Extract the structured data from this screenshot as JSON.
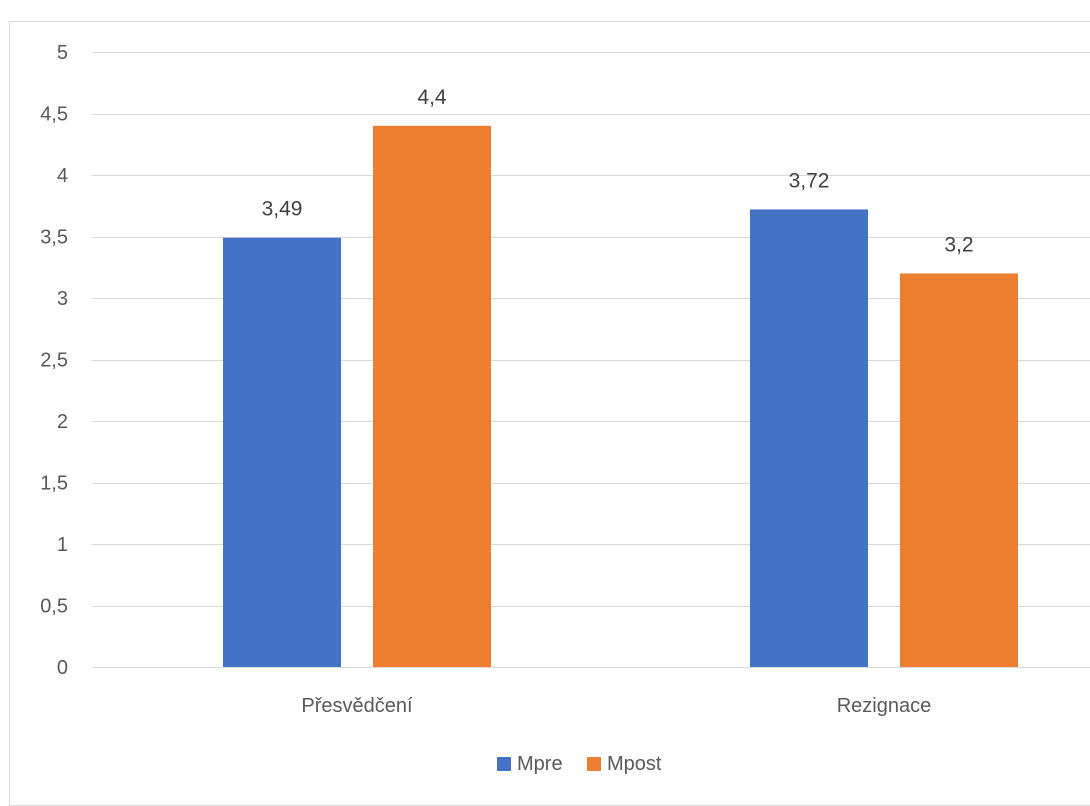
{
  "chart_data": {
    "type": "bar",
    "categories": [
      "Přesvědčení",
      "Rezignace"
    ],
    "series": [
      {
        "name": "Mpre",
        "values": [
          3.49,
          3.72
        ],
        "labels": [
          "3,49",
          "3,72"
        ],
        "color": "#4472C4"
      },
      {
        "name": "Mpost",
        "values": [
          4.4,
          3.2
        ],
        "labels": [
          "4,4",
          "3,2"
        ],
        "color": "#ED7D31"
      }
    ],
    "title": "",
    "xlabel": "",
    "ylabel": "",
    "ylim": [
      0,
      5
    ],
    "yticks": [
      0,
      0.5,
      1,
      1.5,
      2,
      2.5,
      3,
      3.5,
      4,
      4.5,
      5
    ],
    "ytick_labels": [
      "0",
      "0,5",
      "1",
      "1,5",
      "2",
      "2,5",
      "3",
      "3,5",
      "4",
      "4,5",
      "5"
    ],
    "grid": true,
    "legend": "bottom",
    "gridline_color": "#d9d9d9"
  }
}
